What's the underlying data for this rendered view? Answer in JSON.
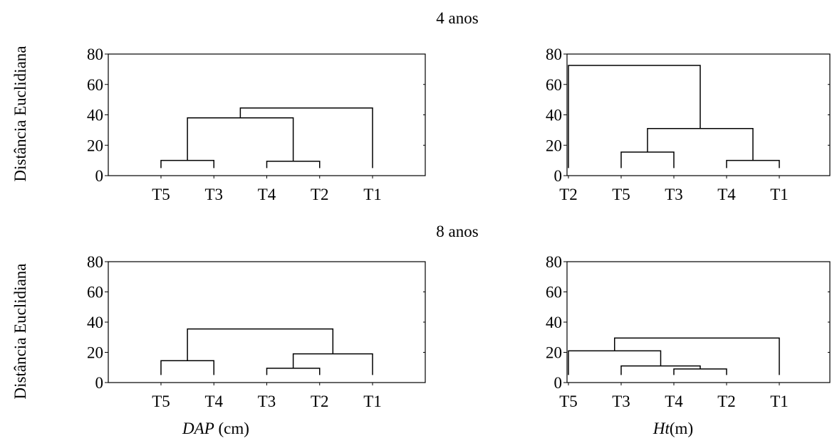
{
  "figure": {
    "row_titles": [
      "4 anos",
      "8 anos"
    ],
    "ylabel": "Distância Euclidiana",
    "xlabels": {
      "dap_prefix": "DAP",
      "dap_unit": " (cm)",
      "ht_prefix": "Ht",
      "ht_unit": "(m)"
    }
  },
  "chart_data": [
    {
      "type": "dendrogram",
      "row_title": "4 anos",
      "variable": "DAP (cm)",
      "ylabel": "Distância Euclidiana",
      "ylim": [
        0,
        80
      ],
      "yticks": [
        0,
        20,
        40,
        60,
        80
      ],
      "leaves": [
        "T5",
        "T3",
        "T4",
        "T2",
        "T1"
      ],
      "merges": [
        {
          "members": [
            "T4",
            "T2"
          ],
          "height": 9.5
        },
        {
          "members": [
            "T5",
            "T3"
          ],
          "height": 10
        },
        {
          "members": [
            "T5,T3",
            "T4,T2"
          ],
          "height": 38
        },
        {
          "members": [
            "T5,T3,T4,T2",
            "T1"
          ],
          "height": 44.5
        }
      ]
    },
    {
      "type": "dendrogram",
      "row_title": "4 anos",
      "variable": "Ht(m)",
      "ylim": [
        0,
        80
      ],
      "yticks": [
        0,
        20,
        40,
        60,
        80
      ],
      "leaves": [
        "T2",
        "T5",
        "T3",
        "T4",
        "T1"
      ],
      "merges": [
        {
          "members": [
            "T4",
            "T1"
          ],
          "height": 10
        },
        {
          "members": [
            "T5",
            "T3"
          ],
          "height": 15.5
        },
        {
          "members": [
            "T5,T3",
            "T4,T1"
          ],
          "height": 31
        },
        {
          "members": [
            "T2",
            "T5,T3,T4,T1"
          ],
          "height": 72.5
        }
      ]
    },
    {
      "type": "dendrogram",
      "row_title": "8 anos",
      "variable": "DAP (cm)",
      "ylabel": "Distância Euclidiana",
      "ylim": [
        0,
        80
      ],
      "yticks": [
        0,
        20,
        40,
        60,
        80
      ],
      "leaves": [
        "T5",
        "T4",
        "T3",
        "T2",
        "T1"
      ],
      "merges": [
        {
          "members": [
            "T3",
            "T2"
          ],
          "height": 9.5
        },
        {
          "members": [
            "T5",
            "T4"
          ],
          "height": 14.5
        },
        {
          "members": [
            "T3,T2",
            "T1"
          ],
          "height": 19
        },
        {
          "members": [
            "T5,T4",
            "T3,T2,T1"
          ],
          "height": 35.5
        }
      ]
    },
    {
      "type": "dendrogram",
      "row_title": "8 anos",
      "variable": "Ht(m)",
      "ylim": [
        0,
        80
      ],
      "yticks": [
        0,
        20,
        40,
        60,
        80
      ],
      "leaves": [
        "T5",
        "T3",
        "T4",
        "T2",
        "T1"
      ],
      "merges": [
        {
          "members": [
            "T4",
            "T2"
          ],
          "height": 9
        },
        {
          "members": [
            "T3",
            "T4,T2"
          ],
          "height": 11
        },
        {
          "members": [
            "T5",
            "T3,T4,T2"
          ],
          "height": 21
        },
        {
          "members": [
            "T5,T3,T4,T2",
            "T1"
          ],
          "height": 29.5
        }
      ]
    }
  ]
}
